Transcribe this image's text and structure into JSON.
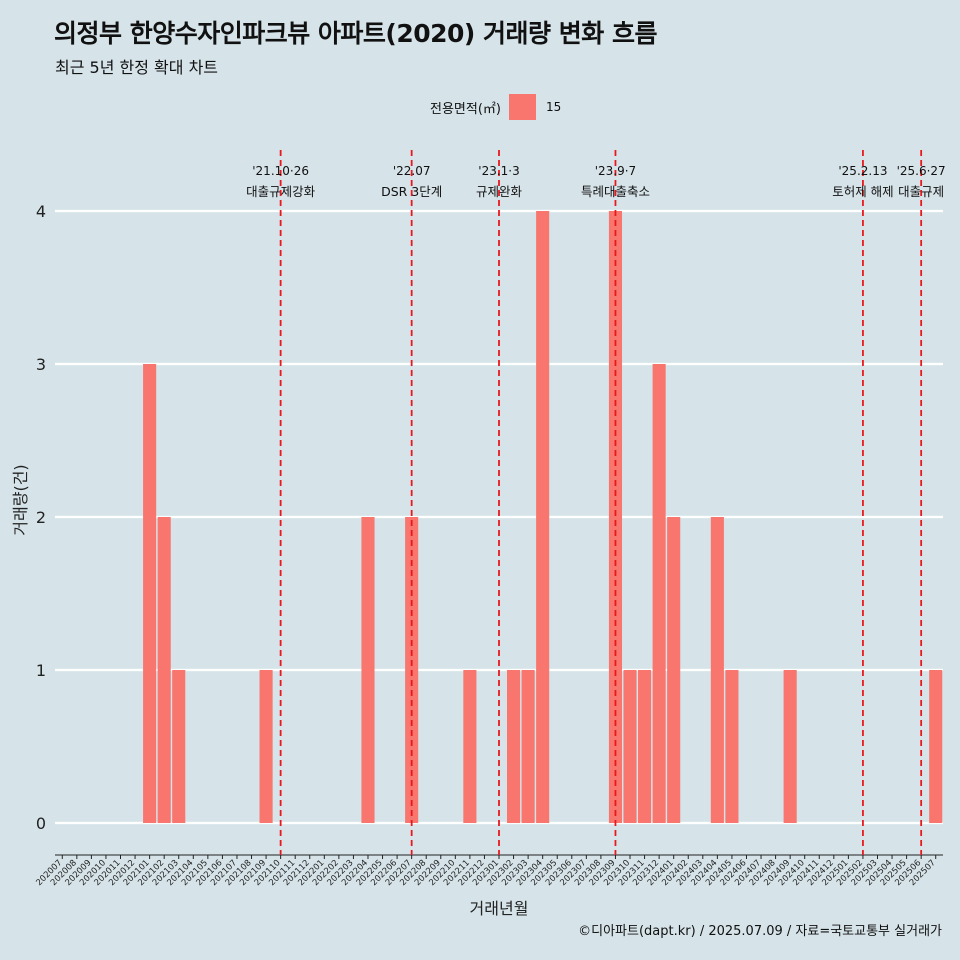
{
  "header": {
    "title": "의정부 한양수자인파크뷰 아파트(2020) 거래량 변화 흐름",
    "subtitle": "최근 5년 한정 확대 차트"
  },
  "legend": {
    "title": "전용면적(㎡)",
    "key": "15"
  },
  "caption": "©디아파트(dapt.kr) / 2025.07.09 / 자료=국토교통부 실거래가",
  "chart_data": {
    "type": "bar",
    "xlabel": "거래년월",
    "ylabel": "거래량(건)",
    "ylim": [
      0,
      4
    ],
    "yticks": [
      0,
      1,
      2,
      3,
      4
    ],
    "grid": true,
    "legend_position": "top",
    "colors": {
      "bar": "#f8766d",
      "event_line": "#e8191d",
      "background": "#d6e4ea",
      "grid": "#ffffff"
    },
    "categories": [
      "202007",
      "202008",
      "202009",
      "202010",
      "202011",
      "202012",
      "202101",
      "202102",
      "202103",
      "202104",
      "202105",
      "202106",
      "202107",
      "202108",
      "202109",
      "202110",
      "202111",
      "202112",
      "202201",
      "202202",
      "202203",
      "202204",
      "202205",
      "202206",
      "202207",
      "202208",
      "202209",
      "202210",
      "202211",
      "202212",
      "202301",
      "202302",
      "202303",
      "202304",
      "202305",
      "202306",
      "202307",
      "202308",
      "202309",
      "202310",
      "202311",
      "202312",
      "202401",
      "202402",
      "202403",
      "202404",
      "202405",
      "202406",
      "202407",
      "202408",
      "202409",
      "202410",
      "202411",
      "202412",
      "202501",
      "202502",
      "202503",
      "202504",
      "202505",
      "202506",
      "202507"
    ],
    "series": [
      {
        "name": "15",
        "values": [
          0,
          0,
          0,
          0,
          0,
          0,
          3,
          2,
          1,
          0,
          0,
          0,
          0,
          0,
          1,
          0,
          0,
          0,
          0,
          0,
          0,
          2,
          0,
          0,
          2,
          0,
          0,
          0,
          1,
          0,
          0,
          1,
          1,
          4,
          0,
          0,
          0,
          0,
          4,
          1,
          1,
          3,
          2,
          0,
          0,
          2,
          1,
          0,
          0,
          0,
          1,
          0,
          0,
          0,
          0,
          0,
          0,
          0,
          0,
          0,
          1
        ]
      }
    ],
    "events": [
      {
        "at": "202110",
        "date": "'21.10·26",
        "label": "대출규제강화"
      },
      {
        "at": "202207",
        "date": "'22.07",
        "label": "DSR 3단계"
      },
      {
        "at": "202301",
        "date": "'23.1·3",
        "label": "규제완화"
      },
      {
        "at": "202309",
        "date": "'23.9·7",
        "label": "특례대출축소"
      },
      {
        "at": "202502",
        "date": "'25.2.13",
        "label": "토허제 해제"
      },
      {
        "at": "202506",
        "date": "'25.6·27",
        "label": "대출규제"
      }
    ]
  }
}
